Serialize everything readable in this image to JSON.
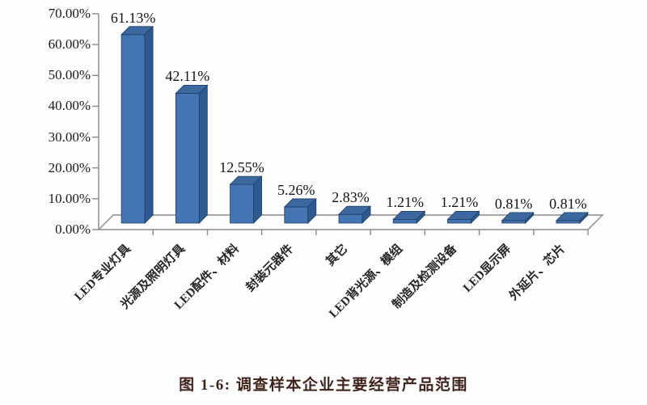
{
  "figure": {
    "caption": "图 1-6: 调查样本企业主要经营产品范围"
  },
  "chart_data": {
    "type": "bar",
    "style": "3d-column",
    "title": "",
    "xlabel": "",
    "ylabel": "",
    "categories": [
      "LED专业灯具",
      "光源及照明灯具",
      "LED配件、材料",
      "封装元器件",
      "其它",
      "LED背光源、模组",
      "制造及检测设备",
      "LED显示屏",
      "外延片、芯片"
    ],
    "values": [
      61.13,
      42.11,
      12.55,
      5.26,
      2.83,
      1.21,
      1.21,
      0.81,
      0.81
    ],
    "data_labels": [
      "61.13%",
      "42.11%",
      "12.55%",
      "5.26%",
      "2.83%",
      "1.21%",
      "1.21%",
      "0.81%",
      "0.81%"
    ],
    "y_ticks": [
      "0.00%",
      "10.00%",
      "20.00%",
      "30.00%",
      "40.00%",
      "50.00%",
      "60.00%",
      "70.00%"
    ],
    "ylim": [
      0,
      70
    ],
    "y_step": 10,
    "grid": false,
    "legend": false,
    "colors": {
      "bar_front": "#4474B1",
      "bar_top": "#3A689F",
      "bar_side": "#2E5A92",
      "bar_outline": "#1E3E63",
      "axis": "#8a8a8a",
      "text": "#1b1b1b",
      "caption": "#40241c"
    }
  }
}
